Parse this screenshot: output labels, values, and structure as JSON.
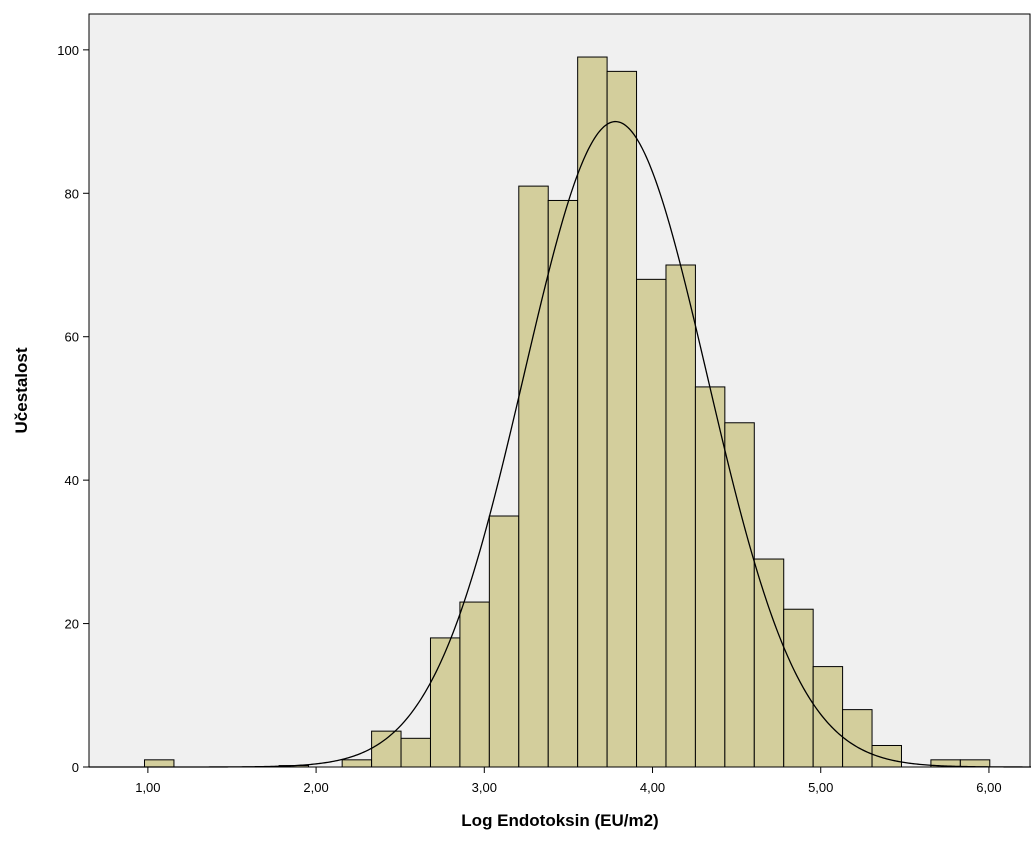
{
  "chart_data": {
    "type": "bar",
    "subtype": "histogram",
    "title": "",
    "xlabel": "Log Endotoksin (EU/m2)",
    "ylabel": "Učestalost",
    "xlim": [
      0.65,
      6.25
    ],
    "ylim": [
      0,
      105
    ],
    "xticks": [
      1.0,
      2.0,
      3.0,
      4.0,
      5.0,
      6.0
    ],
    "xtick_labels": [
      "1,00",
      "2,00",
      "3,00",
      "4,00",
      "5,00",
      "6,00"
    ],
    "yticks": [
      0,
      20,
      40,
      60,
      80,
      100
    ],
    "ytick_labels": [
      "0",
      "20",
      "40",
      "60",
      "80",
      "100"
    ],
    "bin_width": 0.175,
    "bins": [
      {
        "start": 0.98,
        "count": 1
      },
      {
        "start": 1.78,
        "count": 0.2
      },
      {
        "start": 2.155,
        "count": 1
      },
      {
        "start": 2.33,
        "count": 5
      },
      {
        "start": 2.505,
        "count": 4
      },
      {
        "start": 2.68,
        "count": 18
      },
      {
        "start": 2.855,
        "count": 23
      },
      {
        "start": 3.03,
        "count": 35
      },
      {
        "start": 3.205,
        "count": 81
      },
      {
        "start": 3.38,
        "count": 79
      },
      {
        "start": 3.555,
        "count": 99
      },
      {
        "start": 3.73,
        "count": 97
      },
      {
        "start": 3.905,
        "count": 68
      },
      {
        "start": 4.08,
        "count": 70
      },
      {
        "start": 4.255,
        "count": 53
      },
      {
        "start": 4.43,
        "count": 48
      },
      {
        "start": 4.605,
        "count": 29
      },
      {
        "start": 4.78,
        "count": 22
      },
      {
        "start": 4.955,
        "count": 14
      },
      {
        "start": 5.13,
        "count": 8
      },
      {
        "start": 5.305,
        "count": 3
      },
      {
        "start": 5.655,
        "count": 1
      },
      {
        "start": 5.83,
        "count": 1
      }
    ],
    "normal_curve": {
      "mean": 3.78,
      "std": 0.545,
      "peak": 90
    },
    "grid": false,
    "legend": "none",
    "colors": {
      "plot_background": "#f0f0f0",
      "bar_fill": "#d3ce9c",
      "bar_stroke": "#000000",
      "curve": "#000000",
      "frame": "#000000",
      "page_background": "#ffffff"
    }
  }
}
